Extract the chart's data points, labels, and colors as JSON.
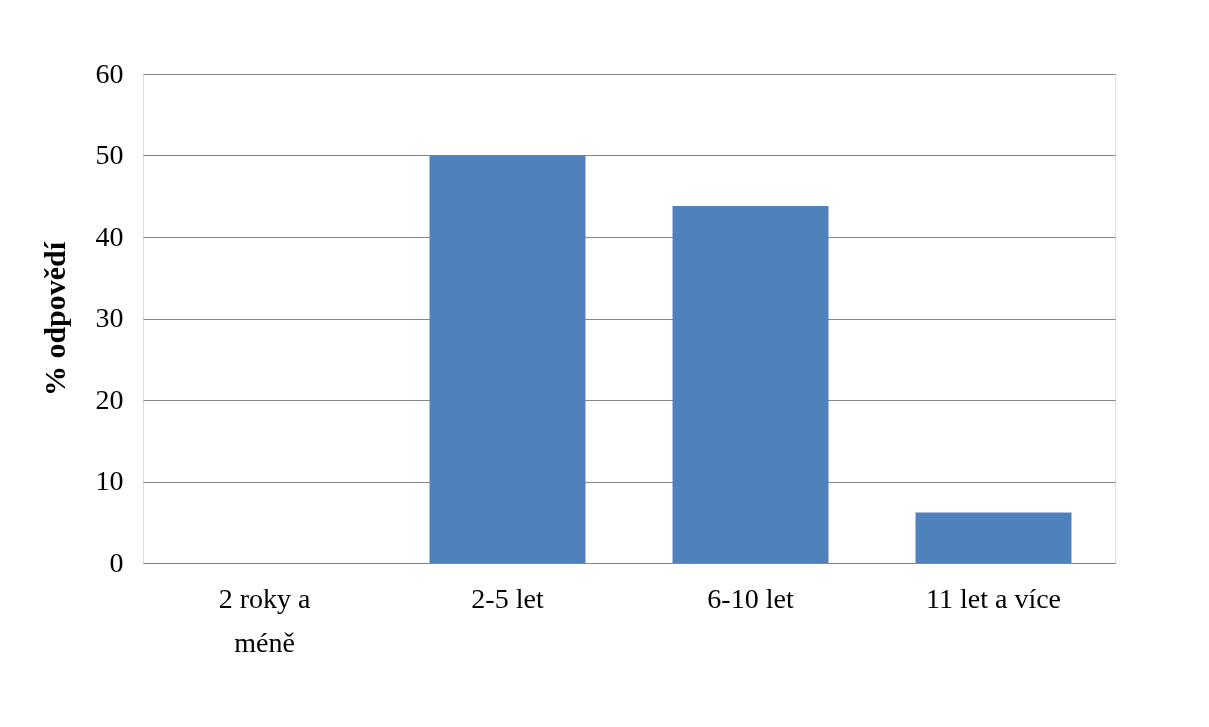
{
  "chart_data": {
    "type": "bar",
    "ylabel": "% odpovědí",
    "categories": [
      "2 roky a\nméně",
      "2-5 let",
      "6-10 let",
      "11 let a více"
    ],
    "values": [
      0,
      50,
      43.8,
      6.2
    ],
    "color": "#4f81bd",
    "ylim": [
      0,
      60
    ],
    "yticks": [
      0,
      10,
      20,
      30,
      40,
      50,
      60
    ],
    "grid": "y"
  }
}
